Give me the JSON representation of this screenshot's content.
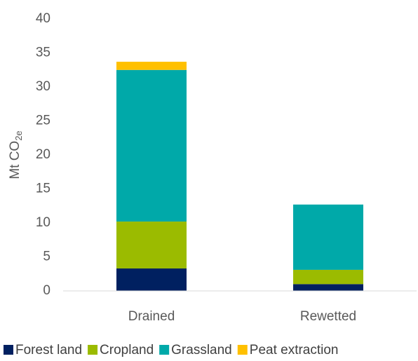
{
  "chart_data": {
    "type": "stacked_bar",
    "ylabel": {
      "text": "Mt CO",
      "subscript": "2e"
    },
    "categories": [
      "Drained",
      "Rewetted"
    ],
    "series": [
      {
        "name": "Forest land",
        "color": "#002060",
        "values": [
          3.3,
          1.0
        ]
      },
      {
        "name": "Cropland",
        "color": "#9bbb00",
        "values": [
          6.9,
          2.1
        ]
      },
      {
        "name": "Grassland",
        "color": "#00a9a9",
        "values": [
          22.3,
          9.6
        ]
      },
      {
        "name": "Peat extraction",
        "color": "#ffc000",
        "values": [
          1.2,
          0
        ]
      }
    ],
    "ylim": [
      0,
      40
    ],
    "yticks": [
      0,
      5,
      10,
      15,
      20,
      25,
      30,
      35,
      40
    ],
    "grid": false,
    "legend": "bottom"
  }
}
